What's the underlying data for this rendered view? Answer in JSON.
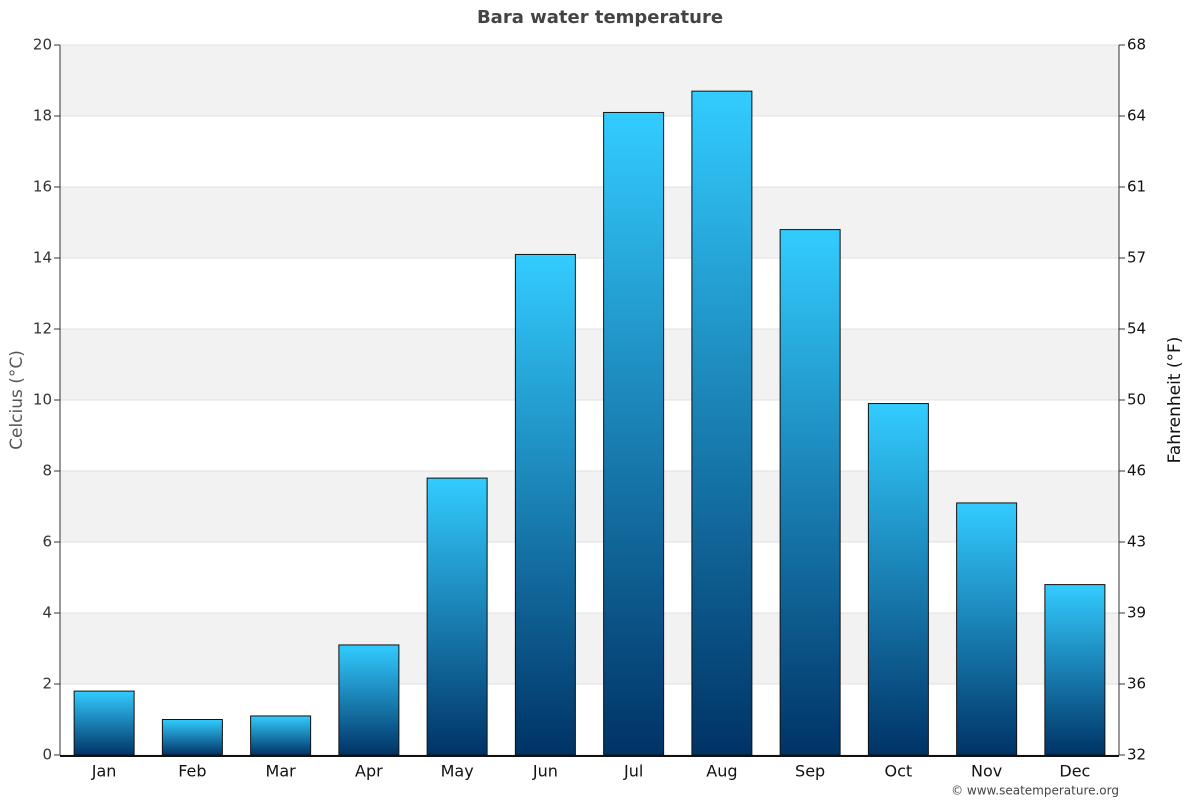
{
  "chart_data": {
    "type": "bar",
    "title": "Bara water temperature",
    "categories": [
      "Jan",
      "Feb",
      "Mar",
      "Apr",
      "May",
      "Jun",
      "Jul",
      "Aug",
      "Sep",
      "Oct",
      "Nov",
      "Dec"
    ],
    "values": [
      1.8,
      1.0,
      1.1,
      3.1,
      7.8,
      14.1,
      18.1,
      18.7,
      14.8,
      9.9,
      7.1,
      4.8
    ],
    "color": "#33ccff",
    "color_bottom": "#003366",
    "ylabel": "Celcius (°C)",
    "y2label": "Fahrenheit (°F)",
    "ylim": [
      0,
      20
    ],
    "yticks": [
      0,
      2,
      4,
      6,
      8,
      10,
      12,
      14,
      16,
      18,
      20
    ],
    "y2lim": [
      32,
      68
    ],
    "y2ticks": [
      32,
      {
        "value": 35.6,
        "label": "36"
      },
      {
        "value": 39.2,
        "label": "39"
      },
      {
        "value": 42.8,
        "label": "43"
      },
      {
        "value": 46.4,
        "label": "46"
      },
      50,
      {
        "value": 53.6,
        "label": "54"
      },
      {
        "value": 57.2,
        "label": "57"
      },
      {
        "value": 60.8,
        "label": "61"
      },
      {
        "value": 64.4,
        "label": "64"
      },
      68
    ],
    "grid": true,
    "credit": "© www.seatemperature.org"
  }
}
